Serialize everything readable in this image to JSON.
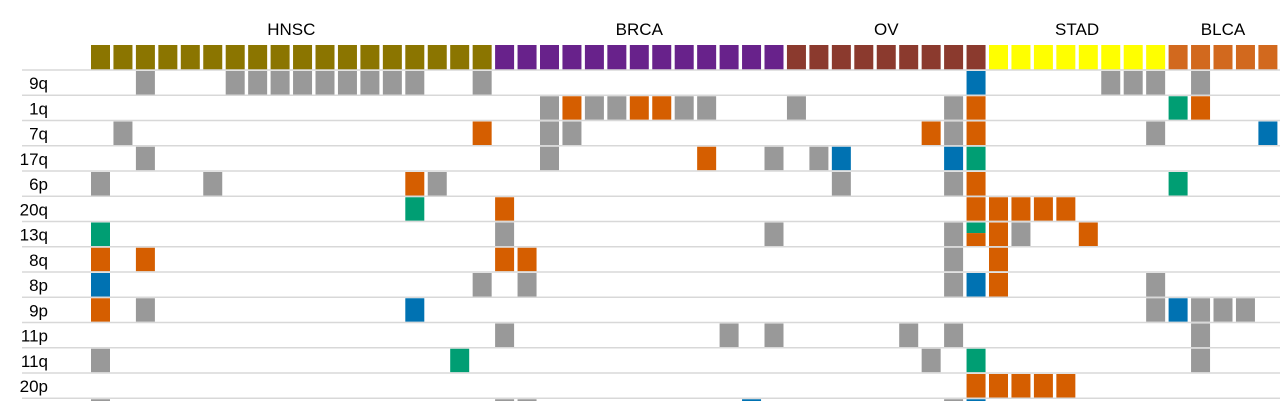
{
  "chart_data": {
    "type": "heatmap",
    "n_columns": 53,
    "groups": [
      {
        "name": "HNSC",
        "start": 0,
        "end": 17,
        "color": "#8b7500"
      },
      {
        "name": "BRCA",
        "start": 18,
        "end": 30,
        "color": "#68228b"
      },
      {
        "name": "OV",
        "start": 31,
        "end": 39,
        "color": "#8b3a2e"
      },
      {
        "name": "STAD",
        "start": 40,
        "end": 47,
        "color": "#ffff00"
      },
      {
        "name": "BLCA",
        "start": 48,
        "end": 52,
        "color": "#d2691e"
      }
    ],
    "cell_colors": {
      "G": "#999999",
      "O": "#d55e00",
      "B": "#0072b2",
      "T": "#009e73",
      "M": "teal-over-orange"
    },
    "rows": [
      {
        "label": "9q",
        "cells": [
          [
            2,
            "G"
          ],
          [
            6,
            "G"
          ],
          [
            7,
            "G"
          ],
          [
            8,
            "G"
          ],
          [
            9,
            "G"
          ],
          [
            10,
            "G"
          ],
          [
            11,
            "G"
          ],
          [
            12,
            "G"
          ],
          [
            13,
            "G"
          ],
          [
            14,
            "G"
          ],
          [
            17,
            "G"
          ],
          [
            39,
            "B"
          ],
          [
            45,
            "G"
          ],
          [
            46,
            "G"
          ],
          [
            47,
            "G"
          ],
          [
            49,
            "G"
          ]
        ]
      },
      {
        "label": "1q",
        "cells": [
          [
            20,
            "G"
          ],
          [
            21,
            "O"
          ],
          [
            22,
            "G"
          ],
          [
            23,
            "G"
          ],
          [
            24,
            "O"
          ],
          [
            25,
            "O"
          ],
          [
            26,
            "G"
          ],
          [
            27,
            "G"
          ],
          [
            31,
            "G"
          ],
          [
            38,
            "G"
          ],
          [
            39,
            "O"
          ],
          [
            48,
            "T"
          ],
          [
            49,
            "O"
          ]
        ]
      },
      {
        "label": "7q",
        "cells": [
          [
            1,
            "G"
          ],
          [
            17,
            "O"
          ],
          [
            20,
            "G"
          ],
          [
            21,
            "G"
          ],
          [
            37,
            "O"
          ],
          [
            38,
            "G"
          ],
          [
            39,
            "O"
          ],
          [
            47,
            "G"
          ],
          [
            52,
            "B"
          ]
        ]
      },
      {
        "label": "17q",
        "cells": [
          [
            2,
            "G"
          ],
          [
            20,
            "G"
          ],
          [
            27,
            "O"
          ],
          [
            30,
            "G"
          ],
          [
            32,
            "G"
          ],
          [
            33,
            "B"
          ],
          [
            38,
            "B"
          ],
          [
            39,
            "T"
          ]
        ]
      },
      {
        "label": "6p",
        "cells": [
          [
            0,
            "G"
          ],
          [
            5,
            "G"
          ],
          [
            14,
            "O"
          ],
          [
            15,
            "G"
          ],
          [
            33,
            "G"
          ],
          [
            38,
            "G"
          ],
          [
            39,
            "O"
          ],
          [
            48,
            "T"
          ]
        ]
      },
      {
        "label": "20q",
        "cells": [
          [
            14,
            "T"
          ],
          [
            18,
            "O"
          ],
          [
            39,
            "O"
          ],
          [
            40,
            "O"
          ],
          [
            41,
            "O"
          ],
          [
            42,
            "O"
          ],
          [
            43,
            "O"
          ]
        ]
      },
      {
        "label": "13q",
        "cells": [
          [
            0,
            "T"
          ],
          [
            18,
            "G"
          ],
          [
            30,
            "G"
          ],
          [
            38,
            "G"
          ],
          [
            39,
            "M"
          ],
          [
            40,
            "O"
          ],
          [
            41,
            "G"
          ],
          [
            44,
            "O"
          ]
        ]
      },
      {
        "label": "8q",
        "cells": [
          [
            0,
            "O"
          ],
          [
            2,
            "O"
          ],
          [
            18,
            "O"
          ],
          [
            19,
            "O"
          ],
          [
            38,
            "G"
          ],
          [
            40,
            "O"
          ]
        ]
      },
      {
        "label": "8p",
        "cells": [
          [
            0,
            "B"
          ],
          [
            17,
            "G"
          ],
          [
            19,
            "G"
          ],
          [
            38,
            "G"
          ],
          [
            39,
            "B"
          ],
          [
            40,
            "O"
          ],
          [
            47,
            "G"
          ]
        ]
      },
      {
        "label": "9p",
        "cells": [
          [
            0,
            "O"
          ],
          [
            2,
            "G"
          ],
          [
            14,
            "B"
          ],
          [
            47,
            "G"
          ],
          [
            48,
            "B"
          ],
          [
            49,
            "G"
          ],
          [
            50,
            "G"
          ],
          [
            51,
            "G"
          ]
        ]
      },
      {
        "label": "11p",
        "cells": [
          [
            18,
            "G"
          ],
          [
            28,
            "G"
          ],
          [
            30,
            "G"
          ],
          [
            36,
            "G"
          ],
          [
            38,
            "G"
          ],
          [
            49,
            "G"
          ]
        ]
      },
      {
        "label": "11q",
        "cells": [
          [
            0,
            "G"
          ],
          [
            16,
            "T"
          ],
          [
            37,
            "G"
          ],
          [
            39,
            "T"
          ],
          [
            49,
            "G"
          ]
        ]
      },
      {
        "label": "20p",
        "cells": [
          [
            39,
            "O"
          ],
          [
            40,
            "O"
          ],
          [
            41,
            "O"
          ],
          [
            42,
            "O"
          ],
          [
            43,
            "O"
          ]
        ]
      },
      {
        "label": "",
        "cells": [
          [
            0,
            "G"
          ],
          [
            18,
            "G"
          ],
          [
            19,
            "G"
          ],
          [
            29,
            "B"
          ],
          [
            38,
            "G"
          ],
          [
            39,
            "B"
          ]
        ]
      }
    ],
    "grid": true
  }
}
